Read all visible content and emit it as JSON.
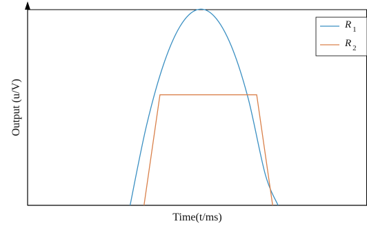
{
  "chart_data": {
    "type": "line",
    "xlabel": "Time(t/ms)",
    "ylabel": "Output (u/V)",
    "xlim": [
      0,
      100
    ],
    "ylim": [
      0,
      100
    ],
    "grid": false,
    "legend_position": "top-right",
    "series": [
      {
        "name": "R",
        "subscript": "1",
        "color": "#3a8fc2",
        "x": [
          30.2,
          35,
          40,
          45,
          50,
          55,
          60,
          65,
          70,
          73.8
        ],
        "y": [
          0,
          40.5,
          71.7,
          91.7,
          100,
          96.6,
          81.5,
          54.6,
          16.0,
          0
        ]
      },
      {
        "name": "R",
        "subscript": "2",
        "color": "#d9804a",
        "x": [
          34.3,
          39.0,
          67.5,
          72.2
        ],
        "y": [
          0,
          56.5,
          56.5,
          0
        ]
      }
    ]
  }
}
